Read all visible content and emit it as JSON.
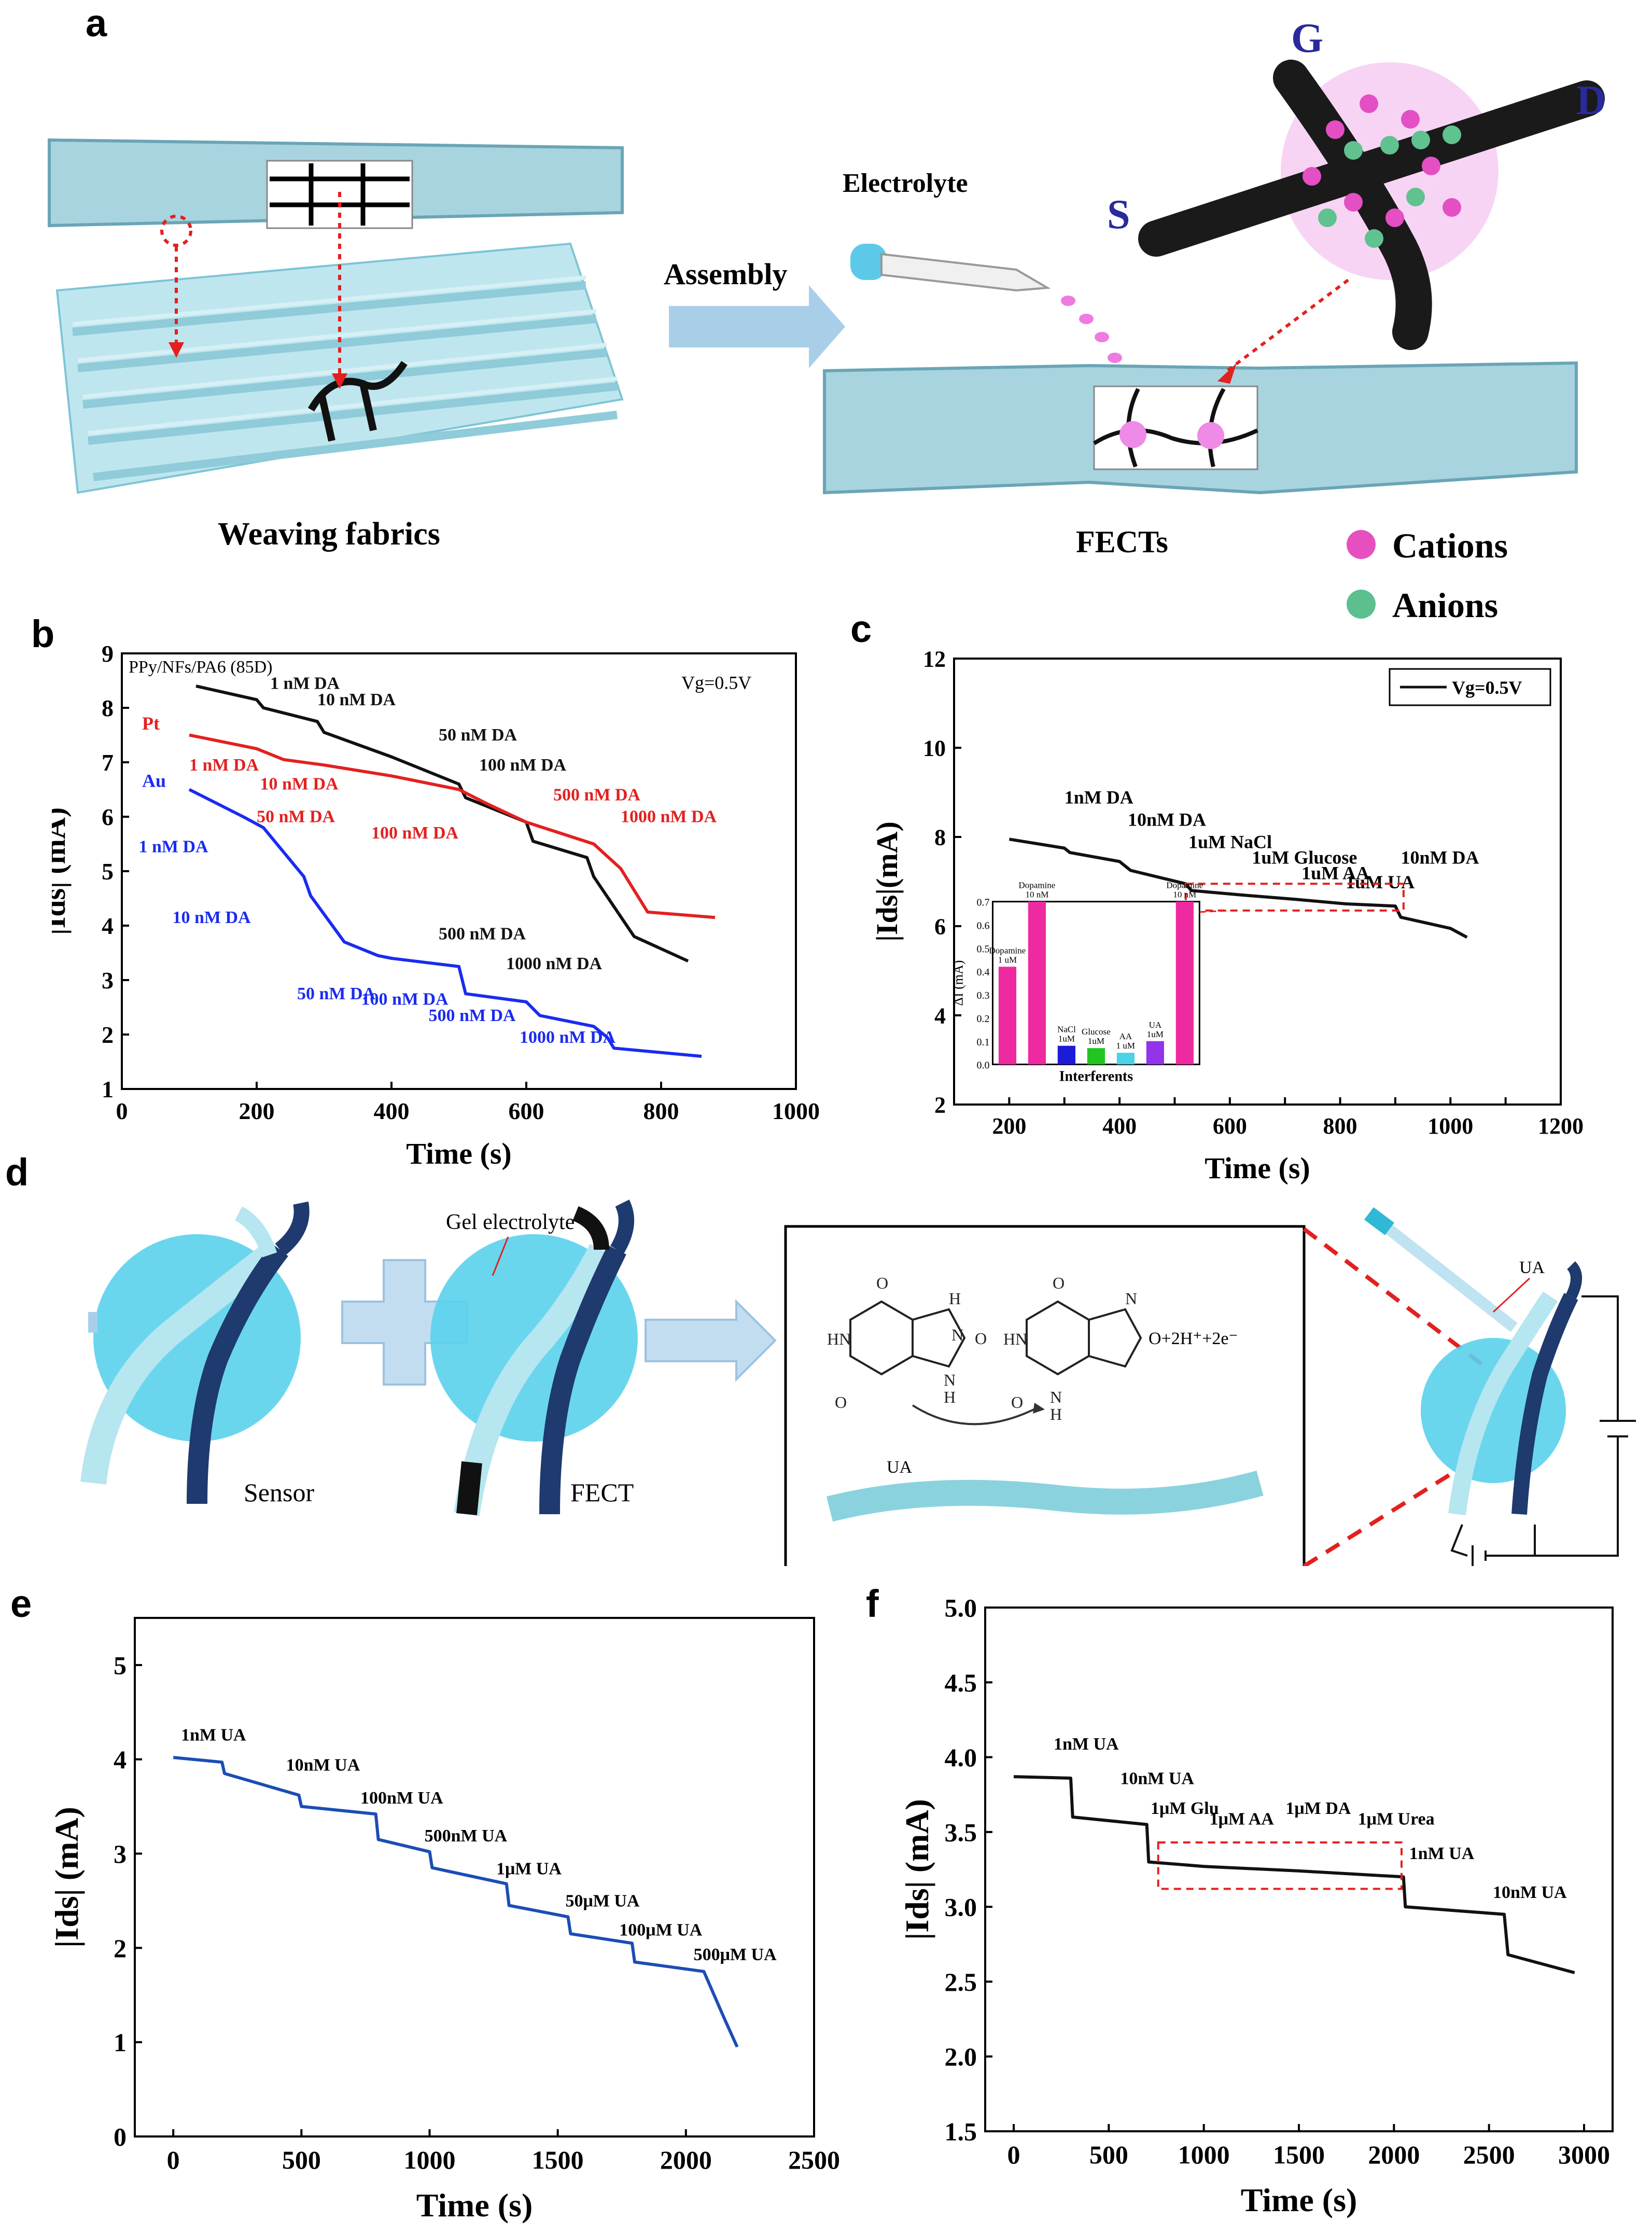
{
  "panels": {
    "a": "a",
    "b": "b",
    "c": "c",
    "d": "d",
    "e": "e",
    "f": "f"
  },
  "a_labels": {
    "weaving": "Weaving  fabrics",
    "assembly": "Assembly",
    "electrolyte": "Electrolyte",
    "fects": "FECTs",
    "cations": "Cations",
    "anions": "Anions",
    "g": "G",
    "d": "D",
    "s": "S"
  },
  "d_labels": {
    "sensor": "Sensor",
    "fect": "FECT",
    "gel": "Gel electrolyte",
    "ua_strip": "UA",
    "ua_pipette": "UA",
    "products": "O+2H⁺+2e⁻"
  },
  "colors": {
    "pink": "#e64fbf",
    "green": "#5bbf8f",
    "teal": "#7ed6ee",
    "blue_fiber": "#a8dcea",
    "black": "#111111",
    "red": "#e32020",
    "blue": "#1a2bf0",
    "navy": "#1b4db5"
  },
  "chart_data": [
    {
      "id": "b",
      "type": "line",
      "title": "",
      "annotation_tl": "PPy/NFs/PA6 (85D)",
      "annotation_tr": "Vg=0.5V",
      "xlabel": "Time (s)",
      "ylabel": "|Ids| (mA)",
      "xlim": [
        0,
        1000
      ],
      "ylim": [
        1,
        9
      ],
      "xticks": [
        0,
        200,
        400,
        600,
        800,
        1000
      ],
      "yticks": [
        1,
        2,
        3,
        4,
        5,
        6,
        7,
        8,
        9
      ],
      "series": [
        {
          "name": "",
          "color": "#111111",
          "x": [
            110,
            200,
            210,
            290,
            300,
            400,
            500,
            510,
            600,
            610,
            690,
            700,
            760,
            840
          ],
          "y": [
            8.4,
            8.15,
            8.0,
            7.75,
            7.55,
            7.1,
            6.6,
            6.35,
            5.9,
            5.55,
            5.25,
            4.9,
            3.8,
            3.35
          ]
        },
        {
          "name": "Pt",
          "color": "#e32020",
          "x": [
            100,
            200,
            240,
            300,
            400,
            500,
            540,
            600,
            700,
            740,
            780,
            880
          ],
          "y": [
            7.5,
            7.25,
            7.05,
            6.95,
            6.75,
            6.5,
            6.25,
            5.9,
            5.5,
            5.05,
            4.25,
            4.15
          ]
        },
        {
          "name": "Au",
          "color": "#1a2bf0",
          "x": [
            100,
            180,
            210,
            270,
            280,
            330,
            380,
            400,
            500,
            510,
            600,
            620,
            700,
            720,
            730,
            860
          ],
          "y": [
            6.5,
            6.0,
            5.8,
            4.9,
            4.55,
            3.7,
            3.45,
            3.4,
            3.25,
            2.75,
            2.6,
            2.35,
            2.15,
            1.95,
            1.75,
            1.6
          ]
        }
      ],
      "annotations": [
        {
          "text": "1 nM DA",
          "color": "#111111",
          "x": 220,
          "y": 8.35
        },
        {
          "text": "10 nM DA",
          "color": "#111111",
          "x": 290,
          "y": 8.05
        },
        {
          "text": "50 nM DA",
          "color": "#111111",
          "x": 470,
          "y": 7.4
        },
        {
          "text": "100 nM DA",
          "color": "#111111",
          "x": 530,
          "y": 6.85
        },
        {
          "text": "500 nM DA",
          "color": "#111111",
          "x": 470,
          "y": 3.75
        },
        {
          "text": "1000 nM DA",
          "color": "#111111",
          "x": 570,
          "y": 3.2
        },
        {
          "text": "1 nM DA",
          "color": "#e32020",
          "x": 100,
          "y": 6.85
        },
        {
          "text": "10 nM DA",
          "color": "#e32020",
          "x": 205,
          "y": 6.5
        },
        {
          "text": "50 nM DA",
          "color": "#e32020",
          "x": 200,
          "y": 5.9
        },
        {
          "text": "100 nM DA",
          "color": "#e32020",
          "x": 370,
          "y": 5.6
        },
        {
          "text": "500 nM DA",
          "color": "#e32020",
          "x": 640,
          "y": 6.3
        },
        {
          "text": "1000 nM DA",
          "color": "#e32020",
          "x": 740,
          "y": 5.9
        },
        {
          "text": "1 nM DA",
          "color": "#1a2bf0",
          "x": 25,
          "y": 5.35
        },
        {
          "text": "10 nM DA",
          "color": "#1a2bf0",
          "x": 75,
          "y": 4.05
        },
        {
          "text": "50 nM DA",
          "color": "#1a2bf0",
          "x": 260,
          "y": 2.65
        },
        {
          "text": "100 nM DA",
          "color": "#1a2bf0",
          "x": 355,
          "y": 2.55
        },
        {
          "text": "500 nM DA",
          "color": "#1a2bf0",
          "x": 455,
          "y": 2.25
        },
        {
          "text": "1000 nM DA",
          "color": "#1a2bf0",
          "x": 590,
          "y": 1.85
        }
      ],
      "legend_labels": {
        "pt": "Pt",
        "au": "Au"
      }
    },
    {
      "id": "c",
      "type": "line",
      "legend": "Vg=0.5V",
      "xlabel": "Time (s)",
      "ylabel": "|Ids|(mA)",
      "xlim": [
        100,
        1200
      ],
      "ylim": [
        2,
        12
      ],
      "xticks": [
        200,
        300,
        400,
        500,
        600,
        700,
        800,
        900,
        1000,
        1100,
        1200
      ],
      "xtick_labels": [
        "200",
        "",
        "400",
        "",
        "600",
        "",
        "800",
        "",
        "1000",
        "",
        "1200"
      ],
      "yticks": [
        2,
        4,
        6,
        8,
        10,
        12
      ],
      "series": [
        {
          "name": "Vg=0.5V",
          "color": "#111111",
          "x": [
            200,
            300,
            310,
            400,
            420,
            520,
            530,
            620,
            720,
            810,
            900,
            910,
            1000,
            1030
          ],
          "y": [
            7.95,
            7.75,
            7.65,
            7.45,
            7.25,
            6.95,
            6.8,
            6.7,
            6.6,
            6.5,
            6.45,
            6.2,
            5.95,
            5.75
          ]
        }
      ],
      "annotations": [
        {
          "text": "1nM DA",
          "x": 300,
          "y": 8.75
        },
        {
          "text": "10nM DA",
          "x": 415,
          "y": 8.25
        },
        {
          "text": "1uM NaCl",
          "x": 525,
          "y": 7.75
        },
        {
          "text": "1uM Glucose",
          "x": 640,
          "y": 7.4
        },
        {
          "text": "1uM AA",
          "x": 730,
          "y": 7.05
        },
        {
          "text": "1uM UA",
          "x": 810,
          "y": 6.85
        },
        {
          "text": "10nM DA",
          "x": 910,
          "y": 7.4
        }
      ],
      "inset": {
        "type": "bar",
        "xlabel": "Interferents",
        "ylabel": "ΔI (mA)",
        "ylim": [
          0,
          0.7
        ],
        "yticks": [
          "0.0",
          "0.1",
          "0.2",
          "0.3",
          "0.4",
          "0.5",
          "0.6",
          "0.7"
        ],
        "bars": [
          {
            "label": "Dopamine\n1 uM",
            "value": 0.42,
            "color": "#ee2aa0"
          },
          {
            "label": "Dopamine\n10 nM",
            "value": 0.7,
            "color": "#ee2aa0"
          },
          {
            "label": "NaCl\n1uM",
            "value": 0.08,
            "color": "#1b1bd8"
          },
          {
            "label": "Glucose\n1uM",
            "value": 0.07,
            "color": "#22c422"
          },
          {
            "label": "AA\n1 uM",
            "value": 0.05,
            "color": "#4dd2e8"
          },
          {
            "label": "UA\n1uM",
            "value": 0.1,
            "color": "#9333ea"
          },
          {
            "label": "Dopamine\n10 nM",
            "value": 0.7,
            "color": "#ee2aa0"
          }
        ]
      }
    },
    {
      "id": "e",
      "type": "line",
      "xlabel": "Time (s)",
      "ylabel": "|Ids| (mA)",
      "xlim": [
        -150,
        2500
      ],
      "ylim": [
        0,
        5.5
      ],
      "xticks": [
        0,
        500,
        1000,
        1500,
        2000,
        2500
      ],
      "yticks": [
        0,
        1,
        2,
        3,
        4,
        5
      ],
      "series": [
        {
          "name": "",
          "color": "#1b4db5",
          "x": [
            0,
            190,
            200,
            490,
            500,
            790,
            800,
            1000,
            1010,
            1300,
            1310,
            1540,
            1550,
            1790,
            1800,
            2070,
            2150,
            2200
          ],
          "y": [
            4.02,
            3.97,
            3.85,
            3.62,
            3.5,
            3.42,
            3.15,
            3.02,
            2.85,
            2.68,
            2.45,
            2.33,
            2.15,
            2.05,
            1.85,
            1.75,
            1.25,
            0.95
          ]
        }
      ],
      "annotations": [
        {
          "text": "1nM UA",
          "x": 30,
          "y": 4.2
        },
        {
          "text": "10nM UA",
          "x": 440,
          "y": 3.88
        },
        {
          "text": "100nM UA",
          "x": 730,
          "y": 3.53
        },
        {
          "text": "500nM UA",
          "x": 980,
          "y": 3.13
        },
        {
          "text": "1μM UA",
          "x": 1260,
          "y": 2.78
        },
        {
          "text": "50μM UA",
          "x": 1530,
          "y": 2.44
        },
        {
          "text": "100μM UA",
          "x": 1740,
          "y": 2.13
        },
        {
          "text": "500μM UA",
          "x": 2030,
          "y": 1.87
        }
      ]
    },
    {
      "id": "f",
      "type": "line",
      "xlabel": "Time (s)",
      "ylabel": "|Ids| (mA)",
      "xlim": [
        -150,
        3150
      ],
      "ylim": [
        1.5,
        5.0
      ],
      "xticks": [
        0,
        500,
        1000,
        1500,
        2000,
        2500,
        3000
      ],
      "yticks": [
        1.5,
        2.0,
        2.5,
        3.0,
        3.5,
        4.0,
        4.5,
        5.0
      ],
      "ytick_labels": [
        "1.5",
        "2.0",
        "2.5",
        "3.0",
        "3.5",
        "4.0",
        "4.5",
        "5.0"
      ],
      "series": [
        {
          "name": "",
          "color": "#111111",
          "x": [
            0,
            300,
            310,
            700,
            710,
            1000,
            1500,
            2050,
            2060,
            2580,
            2600,
            2950
          ],
          "y": [
            3.87,
            3.86,
            3.6,
            3.55,
            3.3,
            3.27,
            3.24,
            3.2,
            3.0,
            2.95,
            2.68,
            2.56
          ]
        }
      ],
      "annotations": [
        {
          "text": "1nM UA",
          "x": 210,
          "y": 4.05
        },
        {
          "text": "10nM UA",
          "x": 560,
          "y": 3.82
        },
        {
          "text": "1μM Glu",
          "x": 720,
          "y": 3.62
        },
        {
          "text": "1μM AA",
          "x": 1030,
          "y": 3.55
        },
        {
          "text": "1μM DA",
          "x": 1430,
          "y": 3.62
        },
        {
          "text": "1μM Urea",
          "x": 1810,
          "y": 3.55
        },
        {
          "text": "1nM UA",
          "x": 2080,
          "y": 3.32
        },
        {
          "text": "10nM UA",
          "x": 2520,
          "y": 3.06
        }
      ]
    }
  ]
}
